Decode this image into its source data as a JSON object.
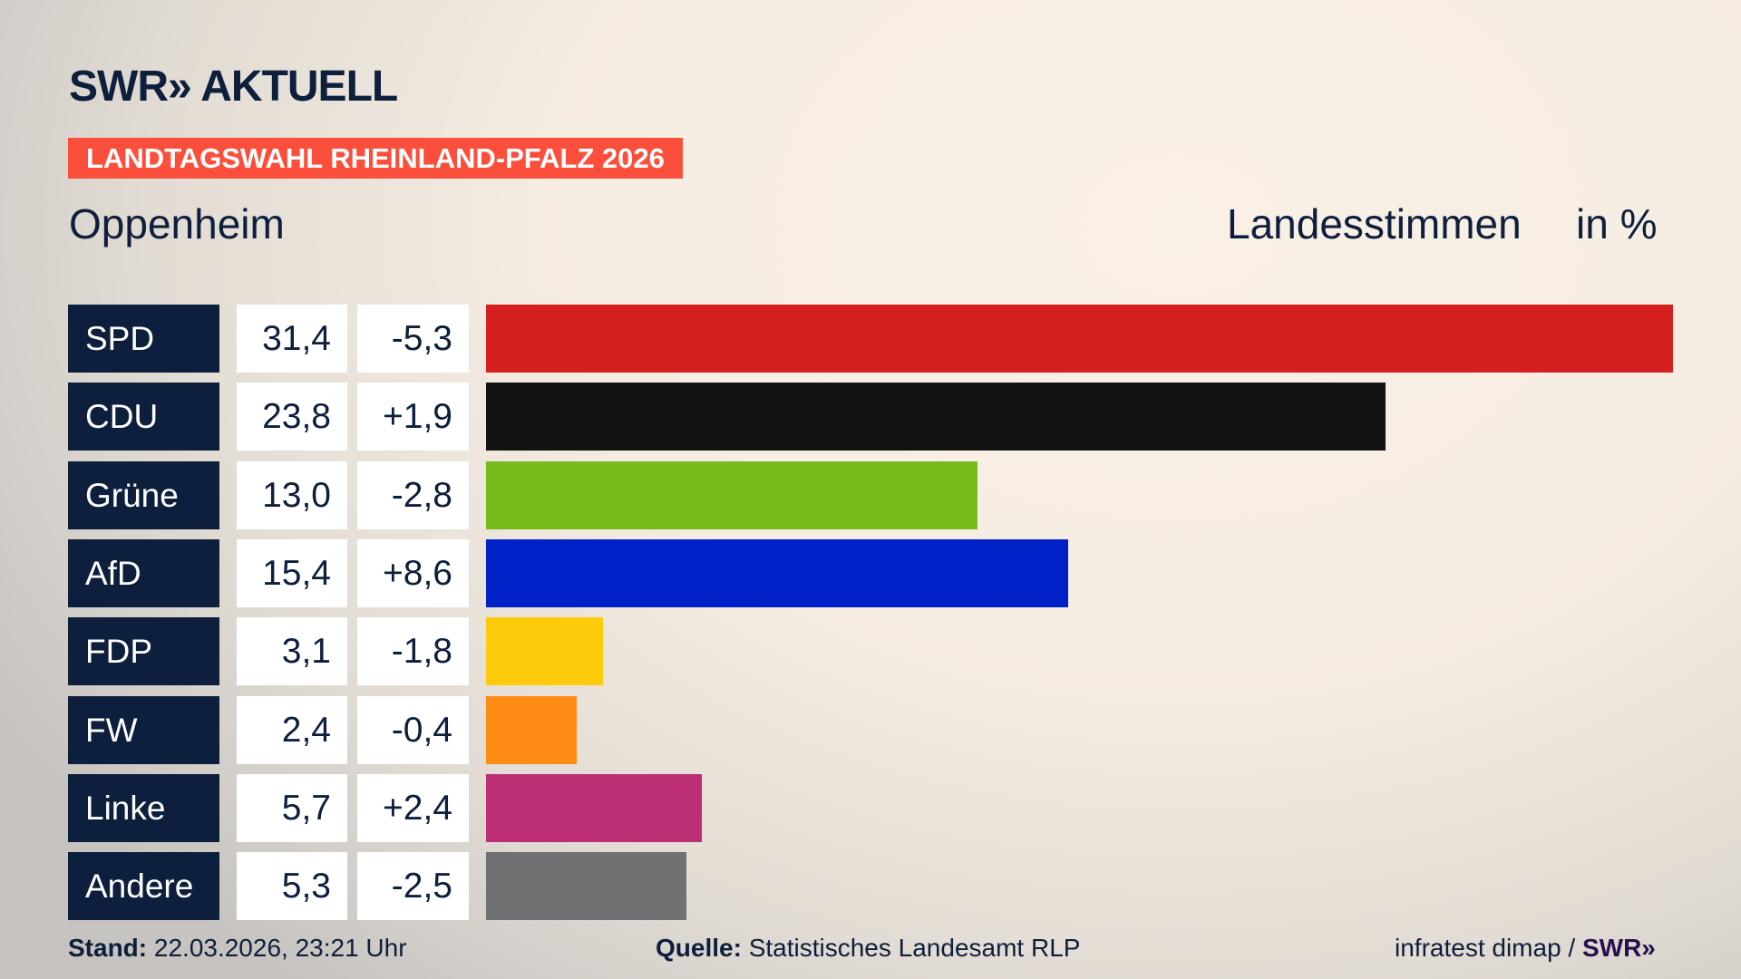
{
  "header": {
    "logo": "SWR» AKTUELL",
    "badge": "LANDTAGSWAHL RHEINLAND-PFALZ 2026",
    "region": "Oppenheim",
    "vote_type": "Landesstimmen",
    "unit": "in %"
  },
  "chart_data": {
    "type": "bar",
    "orientation": "horizontal",
    "xlim": [
      0,
      31.4
    ],
    "categories": [
      "SPD",
      "CDU",
      "Grüne",
      "AfD",
      "FDP",
      "FW",
      "Linke",
      "Andere"
    ],
    "values": [
      31.4,
      23.8,
      13.0,
      15.4,
      3.1,
      2.4,
      5.7,
      5.3
    ],
    "value_labels": [
      "31,4",
      "23,8",
      "13,0",
      "15,4",
      "3,1",
      "2,4",
      "5,7",
      "5,3"
    ],
    "diff_labels": [
      "-5,3",
      "+1,9",
      "-2,8",
      "+8,6",
      "-1,8",
      "-0,4",
      "+2,4",
      "-2,5"
    ],
    "colors": [
      "#d61f1f",
      "#121212",
      "#78bc1b",
      "#0021c8",
      "#fecb0b",
      "#fe8b14",
      "#bc2f74",
      "#707172"
    ]
  },
  "footer": {
    "stand_label": "Stand:",
    "stand_value": "22.03.2026, 23:21 Uhr",
    "source_label": "Quelle:",
    "source_value": "Statistisches Landesamt RLP",
    "credit": "infratest dimap /",
    "credit_logo": "SWR»"
  }
}
